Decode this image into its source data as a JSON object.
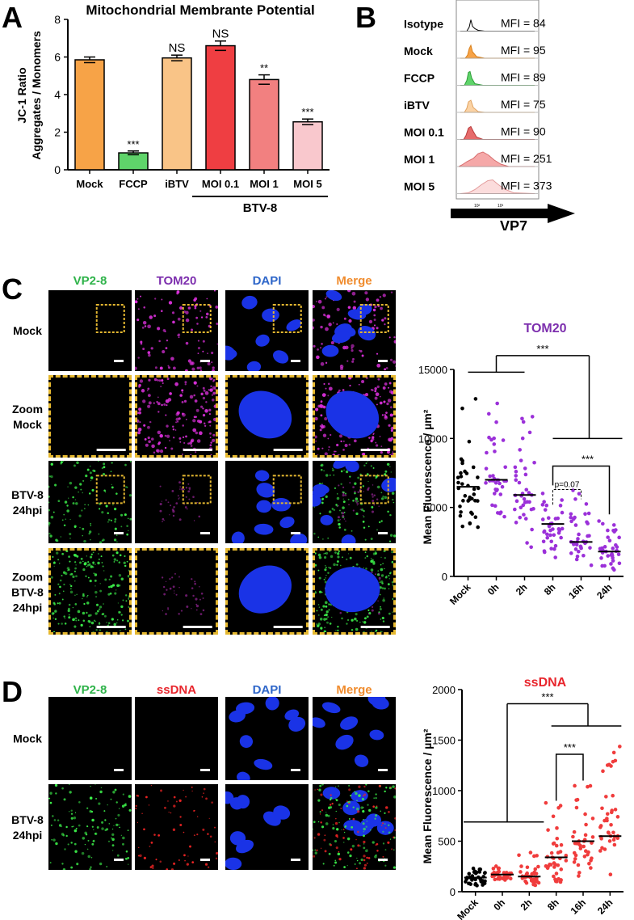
{
  "panel_labels": {
    "a": "A",
    "b": "B",
    "c": "C",
    "d": "D"
  },
  "panel_a": {
    "chart_data": {
      "type": "bar",
      "title": "Mitochondrial  Membrante Potential",
      "ylabel_line1": "JC-1 Ratio",
      "ylabel_line2": "Aggregates / Monomers",
      "ylim": [
        0,
        8
      ],
      "yticks": [
        "0",
        "2",
        "4",
        "6",
        "8"
      ],
      "categories": [
        "Mock",
        "FCCP",
        "iBTV",
        "MOI 0.1",
        "MOI 1",
        "MOI 5"
      ],
      "values": [
        5.85,
        0.9,
        5.95,
        6.6,
        4.8,
        2.55
      ],
      "errors": [
        0.15,
        0.1,
        0.15,
        0.25,
        0.25,
        0.15
      ],
      "colors": [
        "#f7a347",
        "#5fd46a",
        "#f9c487",
        "#ef3e42",
        "#f28080",
        "#f9c8cd"
      ],
      "annotations": [
        "",
        "***",
        "NS",
        "NS",
        "**",
        "***"
      ],
      "group_label": "BTV-8"
    }
  },
  "panel_b": {
    "axis_label": "VP7",
    "rows": [
      {
        "label": "Isotype",
        "mfi": "MFI = 84",
        "color": "#ffffff",
        "stroke": "#000000"
      },
      {
        "label": "Mock",
        "mfi": "MFI = 95",
        "color": "#f7a347",
        "stroke": "#d9801a"
      },
      {
        "label": "FCCP",
        "mfi": "MFI = 89",
        "color": "#5fd46a",
        "stroke": "#2f9e3a"
      },
      {
        "label": "iBTV",
        "mfi": "MFI = 75",
        "color": "#fbd3a5",
        "stroke": "#e0a260"
      },
      {
        "label": "MOI 0.1",
        "mfi": "MFI = 90",
        "color": "#e66b6b",
        "stroke": "#b83c3c"
      },
      {
        "label": "MOI 1",
        "mfi": "MFI = 251",
        "color": "#f5a8a8",
        "stroke": "#d76c6c"
      },
      {
        "label": "MOI 5",
        "mfi": "MFI = 373",
        "color": "#fbdcdc",
        "stroke": "#e29a9a"
      }
    ]
  },
  "panel_c": {
    "columns": [
      {
        "label": "VP2-8",
        "color": "#2fb34a"
      },
      {
        "label": "TOM20",
        "color": "#7d2fae"
      },
      {
        "label": "DAPI",
        "color": "#2e66c9"
      },
      {
        "label": "Merge",
        "color": "#f08c2e"
      }
    ],
    "rows": [
      {
        "line1": "Mock",
        "line2": ""
      },
      {
        "line1": "Zoom",
        "line2": "Mock"
      },
      {
        "line1": "BTV-8",
        "line2": "24hpi"
      },
      {
        "line1": "Zoom",
        "line2": "BTV-8",
        "line3": "24hpi"
      }
    ],
    "chart_data": {
      "type": "scatter",
      "title": "TOM20",
      "title_color": "#7d2fae",
      "ylabel": "Mean Fluorescence / µm²",
      "ylim": [
        0,
        15000
      ],
      "yticks": [
        "0",
        "5000",
        "10000",
        "15000"
      ],
      "categories": [
        "Mock",
        "0h",
        "2h",
        "8h",
        "16h",
        "24h"
      ],
      "medians": [
        6500,
        7000,
        5900,
        3800,
        2500,
        1800
      ],
      "colors": [
        "#000000",
        "#9b30d9",
        "#9b30d9",
        "#9b30d9",
        "#9b30d9",
        "#9b30d9"
      ],
      "annotations": [
        "***",
        "***",
        "p=0.07"
      ]
    }
  },
  "panel_d": {
    "columns": [
      {
        "label": "VP2-8",
        "color": "#2fb34a"
      },
      {
        "label": "ssDNA",
        "color": "#e8262d"
      },
      {
        "label": "DAPI",
        "color": "#2e66c9"
      },
      {
        "label": "Merge",
        "color": "#f08c2e"
      }
    ],
    "rows": [
      {
        "line1": "Mock",
        "line2": ""
      },
      {
        "line1": "BTV-8",
        "line2": "24hpi"
      }
    ],
    "chart_data": {
      "type": "scatter",
      "title": "ssDNA",
      "title_color": "#e8262d",
      "ylabel": "Mean Fluorescence / µm²",
      "ylim": [
        0,
        2000
      ],
      "yticks": [
        "0",
        "500",
        "1000",
        "1500",
        "2000"
      ],
      "categories": [
        "Mock",
        "0h",
        "2h",
        "8h",
        "16h",
        "24h"
      ],
      "medians": [
        140,
        170,
        150,
        340,
        500,
        550
      ],
      "colors": [
        "#000000",
        "#f03c3c",
        "#f03c3c",
        "#f03c3c",
        "#f03c3c",
        "#f03c3c"
      ],
      "annotations": [
        "***",
        "***"
      ]
    }
  }
}
